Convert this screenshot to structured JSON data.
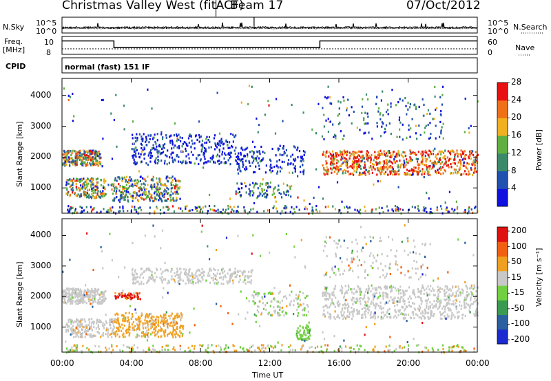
{
  "header": {
    "title": "Christmas Valley West (fitACF)",
    "beam": "Beam 17",
    "date": "07/Oct/2012",
    "mode": "normal (fast) 151 IF"
  },
  "side_labels": {
    "nsky": "N.Sky",
    "nsearch": "N.Search",
    "freq": "Freq.",
    "freq_unit": "[MHz]",
    "nave": "Nave",
    "cpid": "CPID",
    "nsky_ticks": [
      "10^5",
      "10^0"
    ],
    "nsearch_ticks": [
      "10^5",
      "10^0"
    ],
    "freq_ticks": [
      "10",
      "8"
    ],
    "nave_ticks": [
      "60",
      "0"
    ]
  },
  "chart_data": {
    "type": "heatmap",
    "xlabel": "Time UT",
    "x_ticks": [
      "00:00",
      "04:00",
      "08:00",
      "12:00",
      "16:00",
      "20:00",
      "00:00"
    ],
    "xlim_hours": [
      0,
      24
    ],
    "ylabel": "Slant Range [km]",
    "y_ticks": [
      1000,
      2000,
      3000,
      4000
    ],
    "ylim_km": [
      180,
      4550
    ],
    "panels": [
      {
        "name": "power",
        "colorbar_label": "Power [dB]",
        "colorbar_ticks": [
          4,
          8,
          12,
          16,
          20,
          24,
          28
        ],
        "colorbar_range": [
          0,
          32
        ],
        "colors": [
          "#1010e0",
          "#2050b0",
          "#3a8a6a",
          "#5fb040",
          "#f0b020",
          "#f07018",
          "#e81010"
        ]
      },
      {
        "name": "velocity",
        "colorbar_label": "Velocity [m s⁻¹]",
        "colorbar_ticks": [
          200,
          100,
          50,
          15,
          -15,
          -50,
          -100,
          -200
        ],
        "colors": [
          "#1a2ad0",
          "#2a60a0",
          "#3a9a50",
          "#70d040",
          "#c8c8c8",
          "#f0a020",
          "#f06010",
          "#e01010"
        ]
      }
    ],
    "frequency_mhz": [
      {
        "from_hour": 0,
        "to_hour": 3.0,
        "value": 10.5
      },
      {
        "from_hour": 3.0,
        "to_hour": 14.9,
        "value": 9.0
      },
      {
        "from_hour": 14.9,
        "to_hour": 24,
        "value": 10.5
      }
    ]
  }
}
